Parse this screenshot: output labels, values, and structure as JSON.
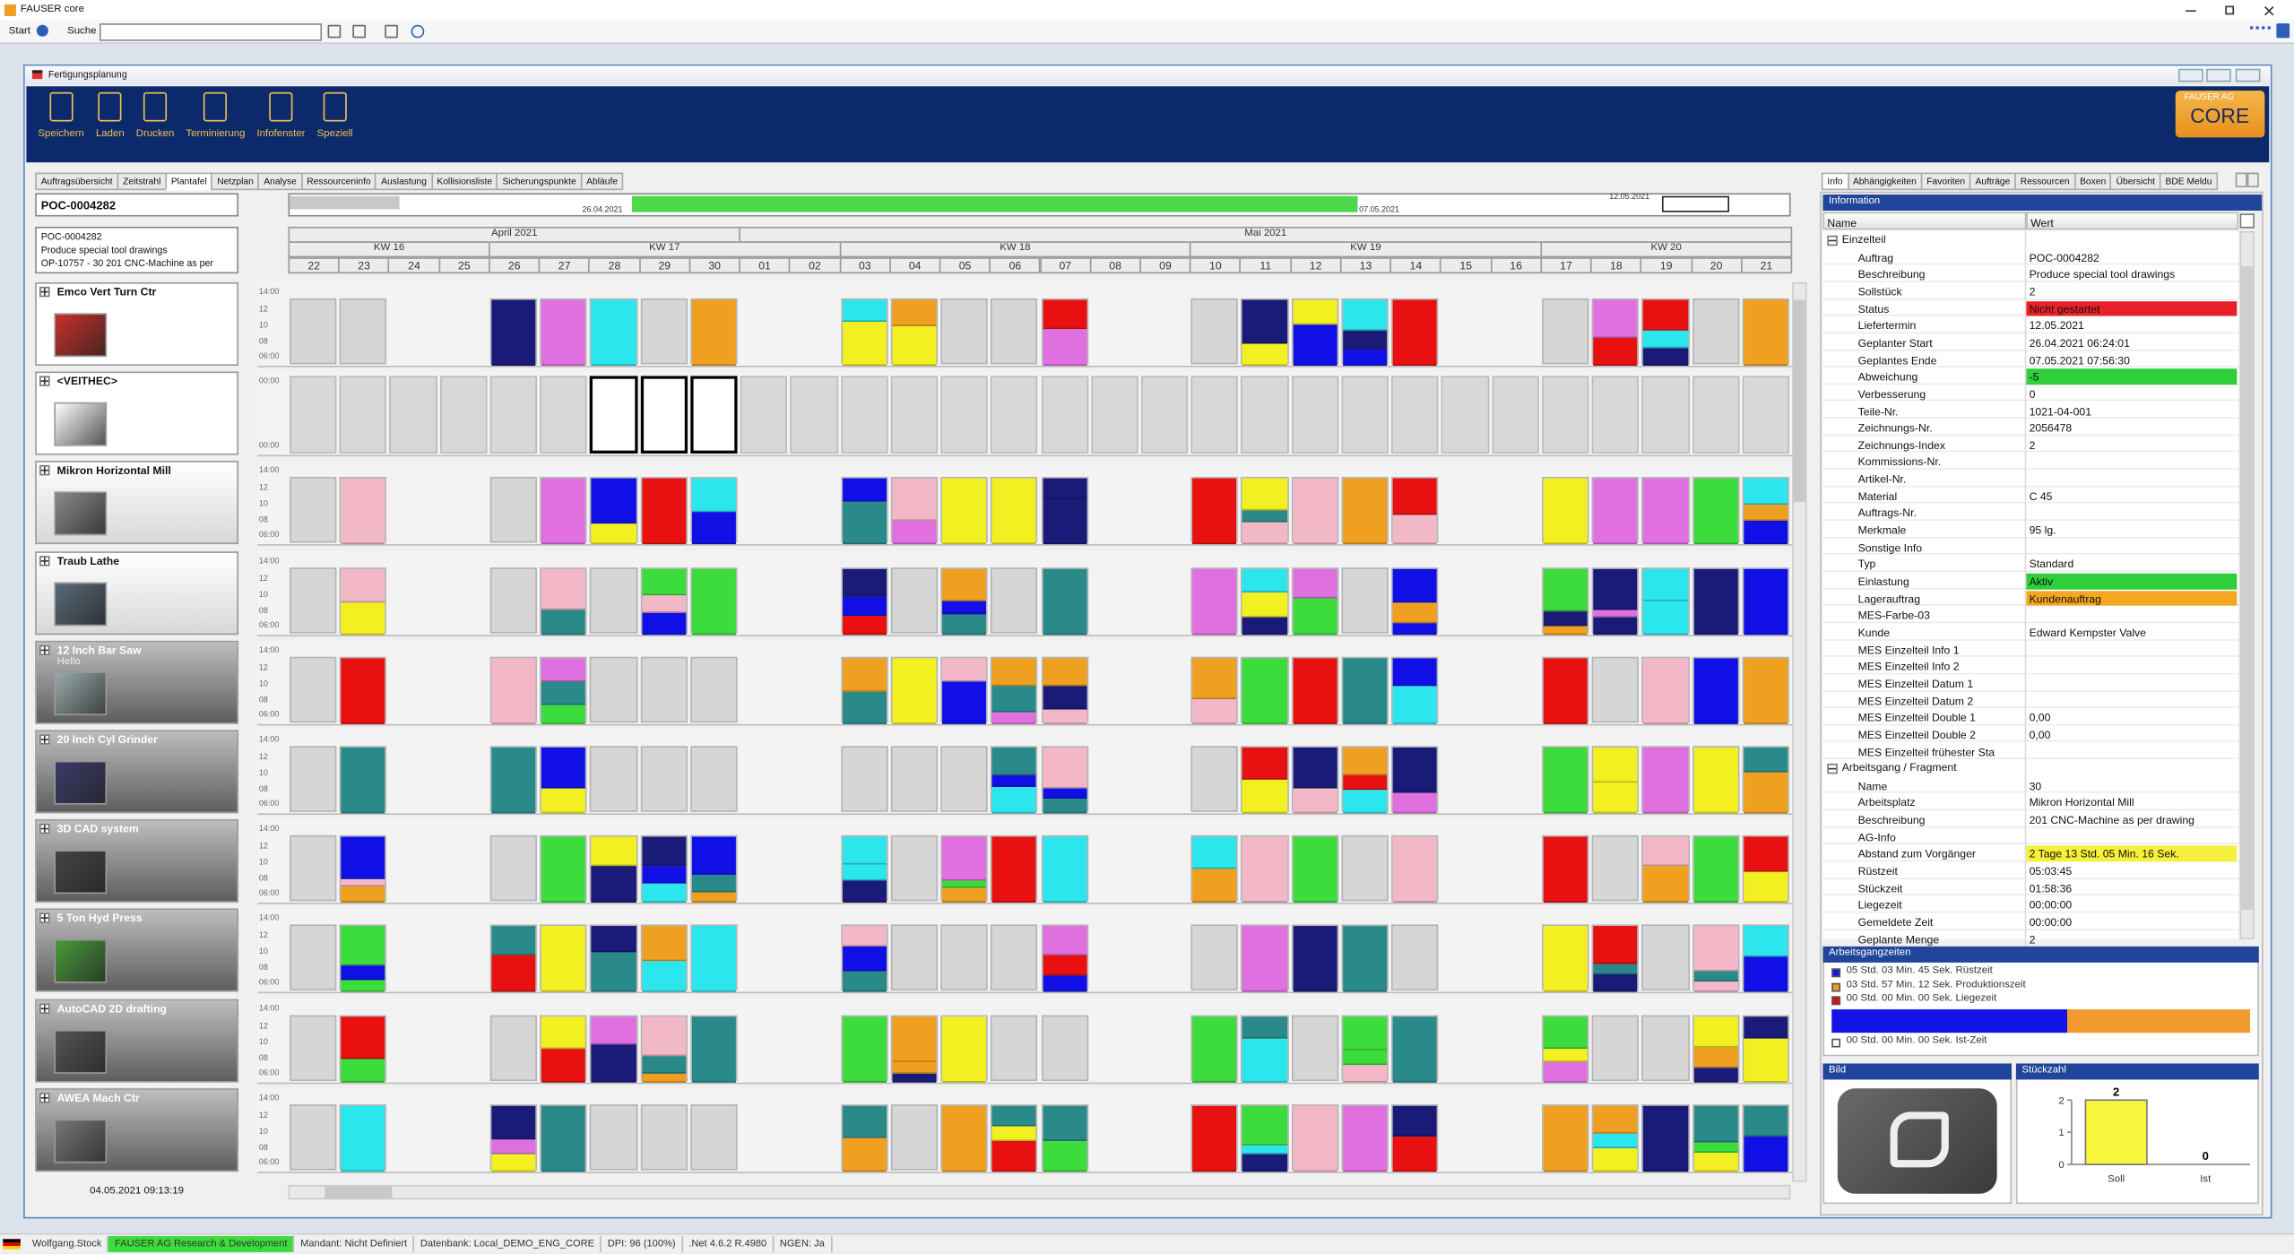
{
  "window": {
    "title": "FAUSER core"
  },
  "toolbar": {
    "start": "Start",
    "search_label": "Suche"
  },
  "document": {
    "title": "Fertigungsplanung"
  },
  "ribbon": {
    "buttons": [
      "Speichern",
      "Laden",
      "Drucken",
      "Terminierung",
      "Infofenster",
      "Speziell"
    ],
    "logo": {
      "line1": "FAUSER AG",
      "line2": "CORE"
    }
  },
  "tabs": {
    "items": [
      "Auftragsübersicht",
      "Zeitstrahl",
      "Plantafel",
      "Netzplan",
      "Analyse",
      "Ressourceninfo",
      "Auslastung",
      "Kollisionsliste",
      "Sicherungspunkte",
      "Abläufe"
    ],
    "active": 2
  },
  "order": {
    "id": "POC-0004282",
    "details": [
      "POC-0004282",
      "Produce special tool drawings",
      "OP-10757 - 30 201 CNC-Machine as per"
    ]
  },
  "timeline": {
    "dates": [
      "26.04.2021",
      "07.05.2021",
      "12.05.2021"
    ]
  },
  "calendar": {
    "months": [
      "April 2021",
      "Mai 2021"
    ],
    "weeks": [
      "KW 16",
      "KW 17",
      "KW 18",
      "KW 19",
      "KW 20"
    ],
    "days": [
      "22",
      "23",
      "24",
      "25",
      "26",
      "27",
      "28",
      "29",
      "30",
      "01",
      "02",
      "03",
      "04",
      "05",
      "06",
      "07",
      "08",
      "09",
      "10",
      "11",
      "12",
      "13",
      "14",
      "15",
      "16",
      "17",
      "18",
      "19",
      "20",
      "21"
    ]
  },
  "board": {
    "shift_labels": [
      "14:00",
      "12",
      "10",
      "08",
      "06:00"
    ],
    "resources": [
      {
        "name": "Emco Vert Turn Ctr"
      },
      {
        "name": "<VEITHEC>",
        "time_labels": [
          "00:00",
          "00:00"
        ]
      },
      {
        "name": "Mikron Horizontal Mill"
      },
      {
        "name": "Traub Lathe"
      },
      {
        "name": "12 Inch Bar Saw",
        "note": "Hello"
      },
      {
        "name": "20 Inch Cyl Grinder"
      },
      {
        "name": "3D CAD system"
      },
      {
        "name": "5 Ton Hyd Press"
      },
      {
        "name": "AutoCAD 2D drafting"
      },
      {
        "name": "AWEA Mach Ctr"
      }
    ]
  },
  "footer_time": "04.05.2021 09:13:19",
  "info": {
    "tabs": [
      "Info",
      "Abhängigkeiten",
      "Favoriten",
      "Aufträge",
      "Ressourcen",
      "Boxen",
      "Übersicht",
      "BDE Meldu"
    ],
    "title": "Information",
    "columns": [
      "Name",
      "Wert"
    ],
    "properties": [
      {
        "group": "Einzelteil",
        "items": [
          {
            "name": "Auftrag",
            "value": "POC-0004282"
          },
          {
            "name": "Beschreibung",
            "value": "Produce special tool drawings"
          },
          {
            "name": "Sollstück",
            "value": "2"
          },
          {
            "name": "Status",
            "value": "Nicht gestartet",
            "bg": "#e8202a"
          },
          {
            "name": "Liefertermin",
            "value": "12.05.2021"
          },
          {
            "name": "Geplanter Start",
            "value": "26.04.2021 06:24:01"
          },
          {
            "name": "Geplantes Ende",
            "value": "07.05.2021 07:56:30"
          },
          {
            "name": "Abweichung",
            "value": "-5",
            "bg": "#2fce3a"
          },
          {
            "name": "Verbesserung",
            "value": "0"
          },
          {
            "name": "Teile-Nr.",
            "value": "1021-04-001"
          },
          {
            "name": "Zeichnungs-Nr.",
            "value": "2056478"
          },
          {
            "name": "Zeichnungs-Index",
            "value": "2"
          },
          {
            "name": "Kommissions-Nr."
          },
          {
            "name": "Artikel-Nr."
          },
          {
            "name": "Material",
            "value": "C 45"
          },
          {
            "name": "Auftrags-Nr."
          },
          {
            "name": "Merkmale",
            "value": "95 lg."
          },
          {
            "name": "Sonstige Info"
          },
          {
            "name": "Typ",
            "value": "Standard"
          },
          {
            "name": "Einlastung",
            "value": "Aktiv",
            "bg": "#2fce3a"
          },
          {
            "name": "Lagerauftrag",
            "value": "Kundenauftrag",
            "bg": "#f5a623"
          },
          {
            "name": "MES-Farbe-03"
          },
          {
            "name": "Kunde",
            "value": "Edward Kempster Valve"
          },
          {
            "name": "MES Einzelteil Info 1"
          },
          {
            "name": "MES Einzelteil Info 2"
          },
          {
            "name": "MES Einzelteil Datum 1"
          },
          {
            "name": "MES Einzelteil Datum 2"
          },
          {
            "name": "MES Einzelteil Double 1",
            "value": "0,00"
          },
          {
            "name": "MES Einzelteil Double 2",
            "value": "0,00"
          },
          {
            "name": "MES Einzelteil frühester Sta"
          }
        ]
      },
      {
        "group": "Arbeitsgang / Fragment",
        "items": [
          {
            "name": "Name",
            "value": "30"
          },
          {
            "name": "Arbeitsplatz",
            "value": "Mikron Horizontal Mill"
          },
          {
            "name": "Beschreibung",
            "value": "201 CNC-Machine as per drawing"
          },
          {
            "name": "AG-Info"
          },
          {
            "name": "Abstand zum Vorgänger",
            "value": "2 Tage 13 Std. 05 Min. 16 Sek.",
            "bg": "#f5f03c"
          },
          {
            "name": "Rüstzeit",
            "value": "05:03:45"
          },
          {
            "name": "Stückzeit",
            "value": "01:58:36"
          },
          {
            "name": "Liegezeit",
            "value": "00:00:00"
          },
          {
            "name": "Gemeldete Zeit",
            "value": "00:00:00"
          },
          {
            "name": "Geplante Menge",
            "value": "2"
          }
        ]
      }
    ]
  },
  "work_times": {
    "title": "Arbeitsgangzeiten",
    "items": [
      {
        "text": "05 Std. 03 Min. 45 Sek. Rüstzeit",
        "color": "#1414e6"
      },
      {
        "text": "03 Std. 57 Min. 12 Sek. Produktionszeit",
        "color": "#f39a2e"
      },
      {
        "text": "00 Std. 00 Min. 00 Sek. Liegezeit",
        "color": "#e01010"
      }
    ],
    "actual": "00 Std. 00 Min. 00 Sek. Ist-Zeit"
  },
  "image_panel": {
    "title": "Bild"
  },
  "piece_count": {
    "type": "bar",
    "title": "Stückzahl",
    "categories": [
      "Soll",
      "Ist"
    ],
    "values": [
      2,
      0
    ],
    "ylim": [
      0,
      2
    ],
    "yticks": [
      0,
      1,
      2
    ],
    "color": "#f7f53c"
  },
  "status_bar": [
    {
      "text": "Wolfgang.Stock"
    },
    {
      "text": "FAUSER AG Research & Development",
      "bg": "#3ddc3d"
    },
    {
      "text": "Mandant: Nicht Definiert"
    },
    {
      "text": "Datenbank: Local_DEMO_ENG_CORE"
    },
    {
      "text": "DPI: 96 (100%)"
    },
    {
      "text": ".Net 4.6.2 R.4980"
    },
    {
      "text": "NGEN: Ja"
    }
  ]
}
